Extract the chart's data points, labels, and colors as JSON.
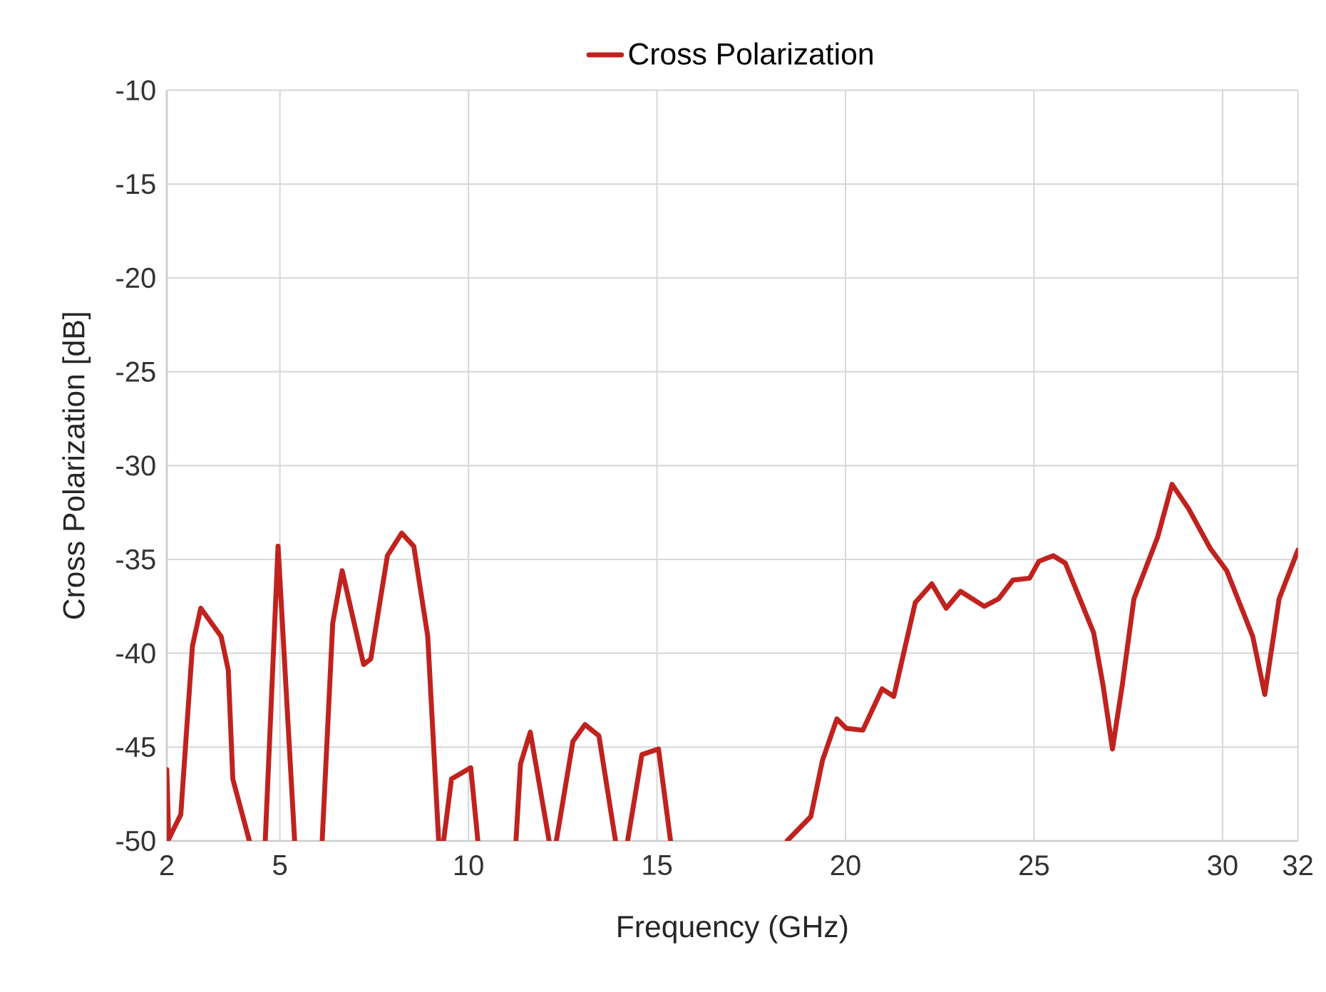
{
  "chart_data": {
    "type": "line",
    "xlabel": "Frequency (GHz)",
    "ylabel": "Cross Polarization [dB]",
    "xlim": [
      2,
      32
    ],
    "ylim": [
      -50,
      -10
    ],
    "xticks": [
      2,
      5,
      10,
      15,
      20,
      25,
      30,
      32
    ],
    "yticks": [
      -50,
      -45,
      -40,
      -35,
      -30,
      -25,
      -20,
      -15,
      -10
    ],
    "grid": true,
    "legend": "top",
    "marker": "none",
    "line_style": "solid",
    "series": [
      {
        "name": "Cross Polarization",
        "color": "#c0221e",
        "x": [
          2.0,
          2.05,
          2.37,
          2.68,
          2.9,
          3.44,
          3.63,
          3.75,
          4.19,
          4.4,
          4.61,
          4.95,
          5.39,
          5.8,
          6.12,
          6.4,
          6.65,
          7.22,
          7.41,
          7.85,
          8.23,
          8.55,
          8.92,
          9.21,
          9.28,
          9.34,
          9.55,
          10.06,
          10.25,
          10.8,
          11.26,
          11.38,
          11.64,
          12.14,
          12.24,
          12.33,
          12.77,
          13.09,
          13.46,
          13.9,
          14.06,
          14.22,
          14.6,
          15.04,
          15.36,
          17.0,
          18.45,
          19.08,
          19.39,
          19.77,
          20.02,
          20.46,
          20.97,
          21.28,
          21.85,
          22.29,
          22.67,
          23.05,
          23.68,
          24.06,
          24.44,
          24.88,
          25.13,
          25.51,
          25.83,
          26.58,
          26.83,
          27.08,
          27.34,
          27.65,
          28.28,
          28.66,
          29.1,
          29.67,
          30.11,
          30.8,
          31.12,
          31.5,
          32.0
        ],
        "values": [
          -46.2,
          -49.9,
          -48.6,
          -39.6,
          -37.6,
          -39.1,
          -40.9,
          -46.7,
          -50,
          null,
          -50,
          -34.3,
          -50,
          null,
          -50,
          -38.4,
          -35.6,
          -40.6,
          -40.3,
          -34.8,
          -33.6,
          -34.3,
          -39.1,
          -50,
          null,
          -50,
          -46.7,
          -46.1,
          -50,
          null,
          -50,
          -45.9,
          -44.2,
          -50,
          null,
          -50,
          -44.7,
          -43.8,
          -44.4,
          -50,
          null,
          -50,
          -45.4,
          -45.1,
          -50,
          null,
          -50,
          -48.7,
          -45.7,
          -43.5,
          -44.0,
          -44.1,
          -41.9,
          -42.3,
          -37.3,
          -36.3,
          -37.6,
          -36.7,
          -37.5,
          -37.1,
          -36.1,
          -36.0,
          -35.1,
          -34.8,
          -35.2,
          -38.9,
          -41.7,
          -45.1,
          -41.7,
          -37.1,
          -33.8,
          -31.0,
          -32.3,
          -34.4,
          -35.6,
          -39.1,
          -42.2,
          -37.1,
          -34.5
        ]
      }
    ]
  }
}
